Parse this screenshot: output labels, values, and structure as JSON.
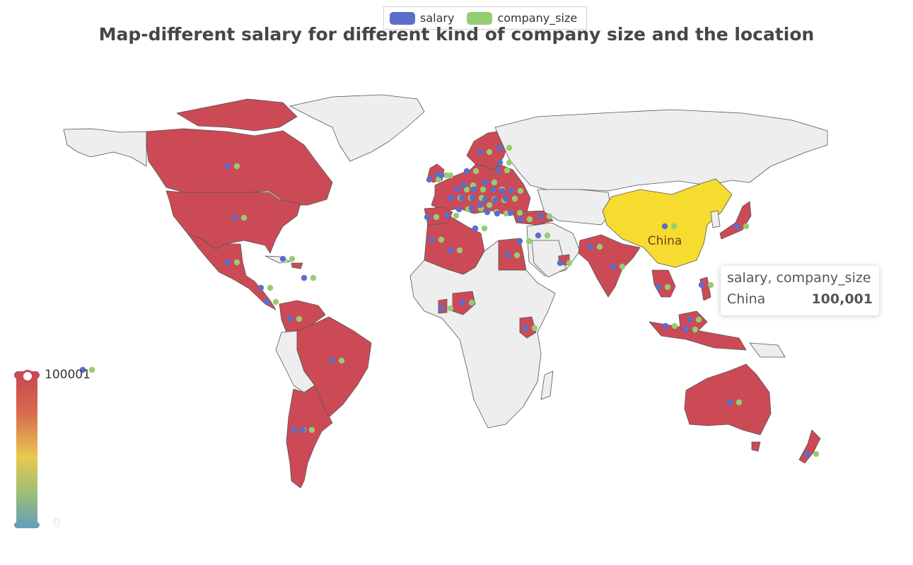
{
  "title": "Map-different salary for different kind of company size and the location",
  "legend": [
    {
      "name": "salary",
      "color": "#5b6ecb"
    },
    {
      "name": "company_size",
      "color": "#96cc73"
    }
  ],
  "visual_map": {
    "max_label": "100001",
    "min_label": "0",
    "min": 0,
    "max": 100001
  },
  "highlight": {
    "label": "China",
    "color": "#f6dc2e"
  },
  "tooltip": {
    "title": "salary, company_size",
    "name": "China",
    "value": "100,001"
  },
  "colors": {
    "land_value": "#cc4a56",
    "land_empty": "#eeeeee",
    "border": "#555555"
  }
}
